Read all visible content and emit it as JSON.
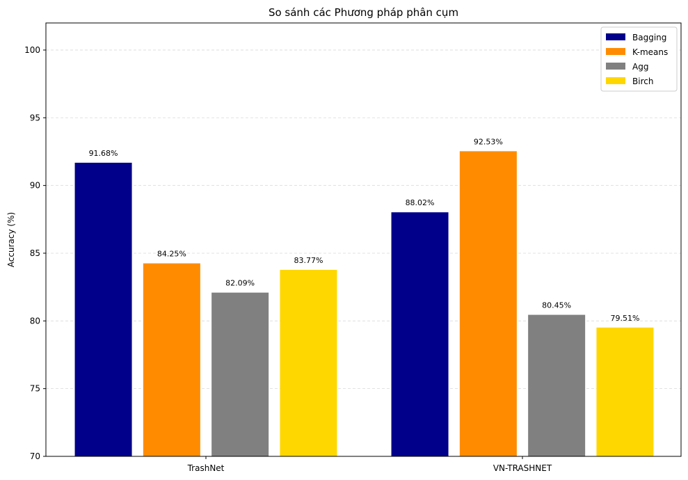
{
  "chart_data": {
    "type": "bar",
    "title": "So sánh các Phương pháp phân cụm",
    "xlabel": "",
    "ylabel": "Accuracy (%)",
    "categories": [
      "TrashNet",
      "VN-TRASHNET"
    ],
    "series": [
      {
        "name": "Bagging",
        "color": "#00008b",
        "values": [
          91.68,
          88.02
        ],
        "labels": [
          "91.68%",
          "88.02%"
        ]
      },
      {
        "name": "K-means",
        "color": "#ff8c00",
        "values": [
          84.25,
          92.53
        ],
        "labels": [
          "84.25%",
          "92.53%"
        ]
      },
      {
        "name": "Agg",
        "color": "#808080",
        "values": [
          82.09,
          80.45
        ],
        "labels": [
          "82.09%",
          "80.45%"
        ]
      },
      {
        "name": "Birch",
        "color": "#ffd700",
        "values": [
          83.77,
          79.51
        ],
        "labels": [
          "83.77%",
          "79.51%"
        ]
      }
    ],
    "ylim": [
      70,
      102
    ],
    "yticks": [
      70,
      75,
      80,
      85,
      90,
      95,
      100
    ],
    "grid": "y-dashed",
    "legend_position": "top-right"
  }
}
